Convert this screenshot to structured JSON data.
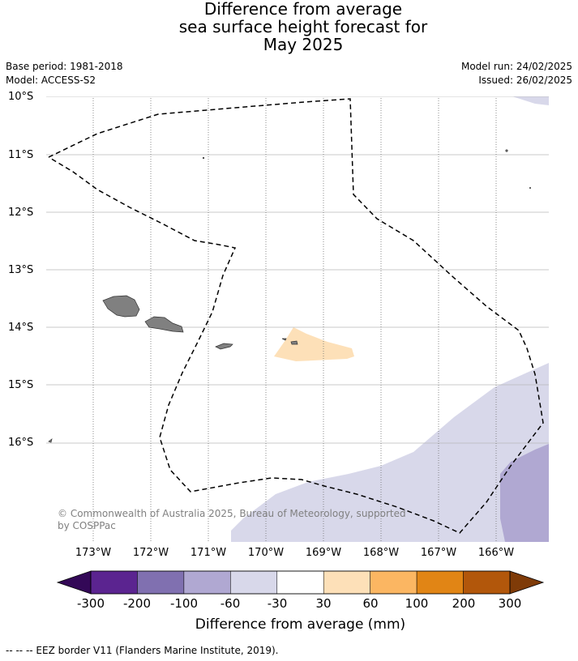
{
  "title": {
    "line1": "Difference from average",
    "line2": "sea surface height forecast for",
    "line3": "May 2025"
  },
  "meta": {
    "base_period": "Base period: 1981-2018",
    "model": "Model: ACCESS-S2",
    "model_run": "Model run: 24/02/2025",
    "issued": "Issued: 26/02/2025"
  },
  "map": {
    "lat_labels": [
      "10°S",
      "11°S",
      "12°S",
      "13°S",
      "14°S",
      "15°S",
      "16°S"
    ],
    "lon_labels": [
      "173°W",
      "172°W",
      "171°W",
      "170°W",
      "169°W",
      "168°W",
      "167°W",
      "166°W"
    ],
    "copyright_line1": "© Commonwealth of Australia 2025, Bureau of Meteorology, supported",
    "copyright_line2": "by COSPPac"
  },
  "colorbar": {
    "ticks": [
      "-300",
      "-200",
      "-100",
      "-60",
      "-30",
      "30",
      "60",
      "100",
      "200",
      "300"
    ],
    "colors": [
      "#5b2490",
      "#8070b0",
      "#b0a8d2",
      "#d8d8ea",
      "#ffffff",
      "#fde0b8",
      "#fbb662",
      "#e18515",
      "#b2570b"
    ],
    "extend_low_color": "#330857",
    "extend_high_color": "#7f3b08",
    "title": "Difference from average (mm)"
  },
  "footnote": "--  --  -- EEZ border V11 (Flanders Marine Institute, 2019)."
}
